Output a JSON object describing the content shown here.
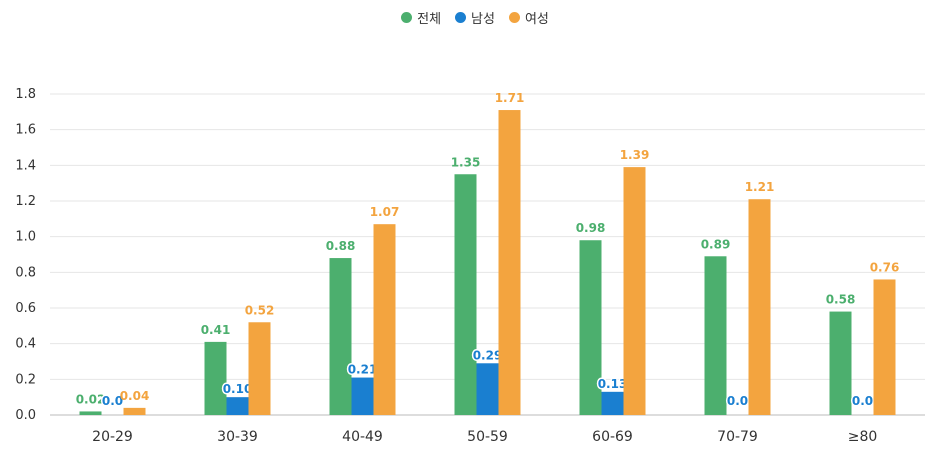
{
  "chart_data": {
    "type": "bar",
    "categories": [
      "20-29",
      "30-39",
      "40-49",
      "50-59",
      "60-69",
      "70-79",
      "≥80"
    ],
    "series": [
      {
        "name": "전체",
        "color": "#4caf6e",
        "values": [
          0.02,
          0.41,
          0.88,
          1.35,
          0.98,
          0.89,
          0.58
        ],
        "labels": [
          "0.02",
          "0.41",
          "0.88",
          "1.35",
          "0.98",
          "0.89",
          "0.58"
        ]
      },
      {
        "name": "남성",
        "color": "#1a7fd0",
        "values": [
          0.0,
          0.1,
          0.21,
          0.29,
          0.13,
          0.0,
          0.0
        ],
        "labels": [
          "0.0",
          "0.10",
          "0.21",
          "0.29",
          "0.13",
          "0.0",
          "0.0"
        ]
      },
      {
        "name": "여성",
        "color": "#f3a43f",
        "values": [
          0.04,
          0.52,
          1.07,
          1.71,
          1.39,
          1.21,
          0.76
        ],
        "labels": [
          "0.04",
          "0.52",
          "1.07",
          "1.71",
          "1.39",
          "1.21",
          "0.76"
        ]
      }
    ],
    "ylim": [
      0,
      1.8
    ],
    "yticks": [
      "0.0",
      "0.2",
      "0.4",
      "0.6",
      "0.8",
      "1.0",
      "1.2",
      "1.4",
      "1.6",
      "1.8"
    ],
    "grid": true,
    "legend_position": "top-center"
  }
}
